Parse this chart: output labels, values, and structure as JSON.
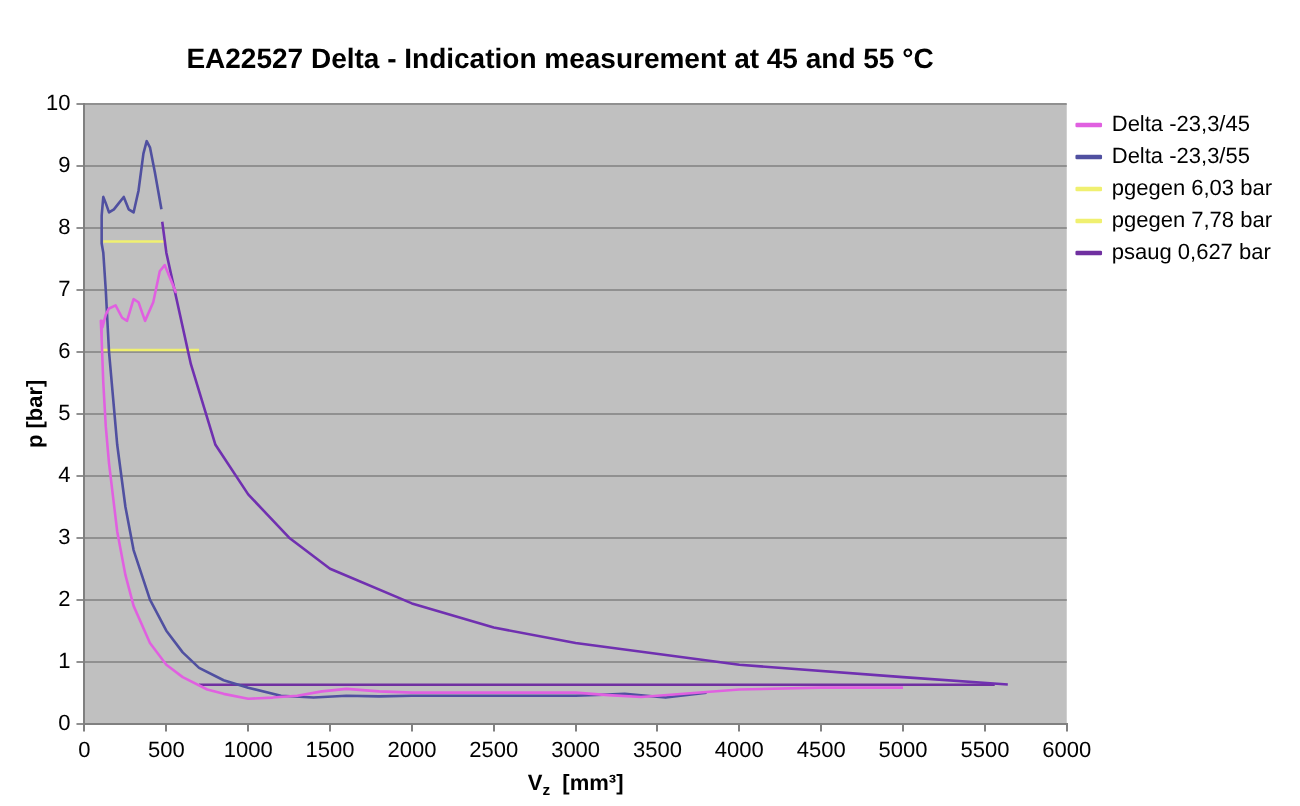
{
  "chart_data": {
    "type": "line",
    "title": "EA22527 Delta - Indication measurement at 45 and 55 °C",
    "xlabel": "V$_{z}$  [mm³]",
    "ylabel": "p [bar]",
    "xlim": [
      0,
      6000
    ],
    "xticks": [
      0,
      500,
      1000,
      1500,
      2000,
      2500,
      3000,
      3500,
      4000,
      4500,
      5000,
      5500,
      6000
    ],
    "ylim": [
      0,
      10
    ],
    "yticks": [
      0,
      1,
      2,
      3,
      4,
      5,
      6,
      7,
      8,
      9,
      10
    ],
    "grid": "y",
    "legend": "top right",
    "marker": "none",
    "line_style": "solid",
    "series": [
      {
        "name": "Delta -23,3/45",
        "color": "#e060e0",
        "x": [
          560,
          490,
          460,
          420,
          370,
          330,
          300,
          260,
          230,
          190,
          150,
          130,
          110,
          100,
          105,
          115,
          130,
          150,
          200,
          250,
          300,
          400,
          500,
          600,
          750,
          850,
          1000,
          1150,
          1300,
          1450,
          1600,
          1800,
          2000,
          2500,
          3000,
          3200,
          3400,
          3600,
          4000,
          4500,
          5000
        ],
        "values": [
          6.95,
          7.4,
          7.3,
          6.8,
          6.5,
          6.8,
          6.85,
          6.5,
          6.55,
          6.75,
          6.7,
          6.6,
          6.4,
          6.5,
          6.2,
          5.5,
          4.8,
          4.2,
          3.1,
          2.4,
          1.9,
          1.3,
          0.95,
          0.75,
          0.55,
          0.48,
          0.4,
          0.42,
          0.45,
          0.52,
          0.56,
          0.52,
          0.5,
          0.5,
          0.5,
          0.46,
          0.43,
          0.47,
          0.55,
          0.58,
          0.58
        ]
      },
      {
        "name": "Delta -23,3/55",
        "color": "#5050a0",
        "x": [
          470,
          430,
          400,
          380,
          360,
          330,
          300,
          270,
          240,
          210,
          180,
          150,
          130,
          115,
          105,
          105,
          115,
          130,
          150,
          200,
          250,
          300,
          400,
          500,
          600,
          700,
          850,
          1000,
          1200,
          1400,
          1600,
          1800,
          2000,
          2500,
          3000,
          3300,
          3550,
          3800
        ],
        "values": [
          8.3,
          8.9,
          9.3,
          9.4,
          9.2,
          8.6,
          8.25,
          8.3,
          8.5,
          8.4,
          8.3,
          8.25,
          8.4,
          8.5,
          8.2,
          7.75,
          7.6,
          7.0,
          6.0,
          4.5,
          3.5,
          2.8,
          2.0,
          1.5,
          1.15,
          0.9,
          0.7,
          0.58,
          0.45,
          0.42,
          0.45,
          0.44,
          0.45,
          0.45,
          0.45,
          0.48,
          0.42,
          0.5
        ]
      },
      {
        "color": "#7030b0",
        "x": [
          5640,
          5000,
          4000,
          3000,
          2500,
          2000,
          1500,
          1250,
          1000,
          800,
          650,
          500,
          475
        ],
        "values": [
          0.63,
          0.75,
          0.95,
          1.3,
          1.55,
          1.94,
          2.5,
          3.0,
          3.7,
          4.5,
          5.8,
          7.6,
          8.1
        ]
      },
      {
        "name": "pgegen 6,03 bar",
        "color": "#f0f070",
        "x": [
          110,
          700
        ],
        "values": [
          6.03,
          6.03
        ]
      },
      {
        "name": "pgegen 7,78 bar",
        "color": "#f0f070",
        "x": [
          115,
          490
        ],
        "values": [
          7.78,
          7.78
        ]
      },
      {
        "name": "psaug 0,627 bar",
        "color": "#7030a0",
        "x": [
          700,
          5560
        ],
        "values": [
          0.627,
          0.627
        ]
      }
    ]
  }
}
